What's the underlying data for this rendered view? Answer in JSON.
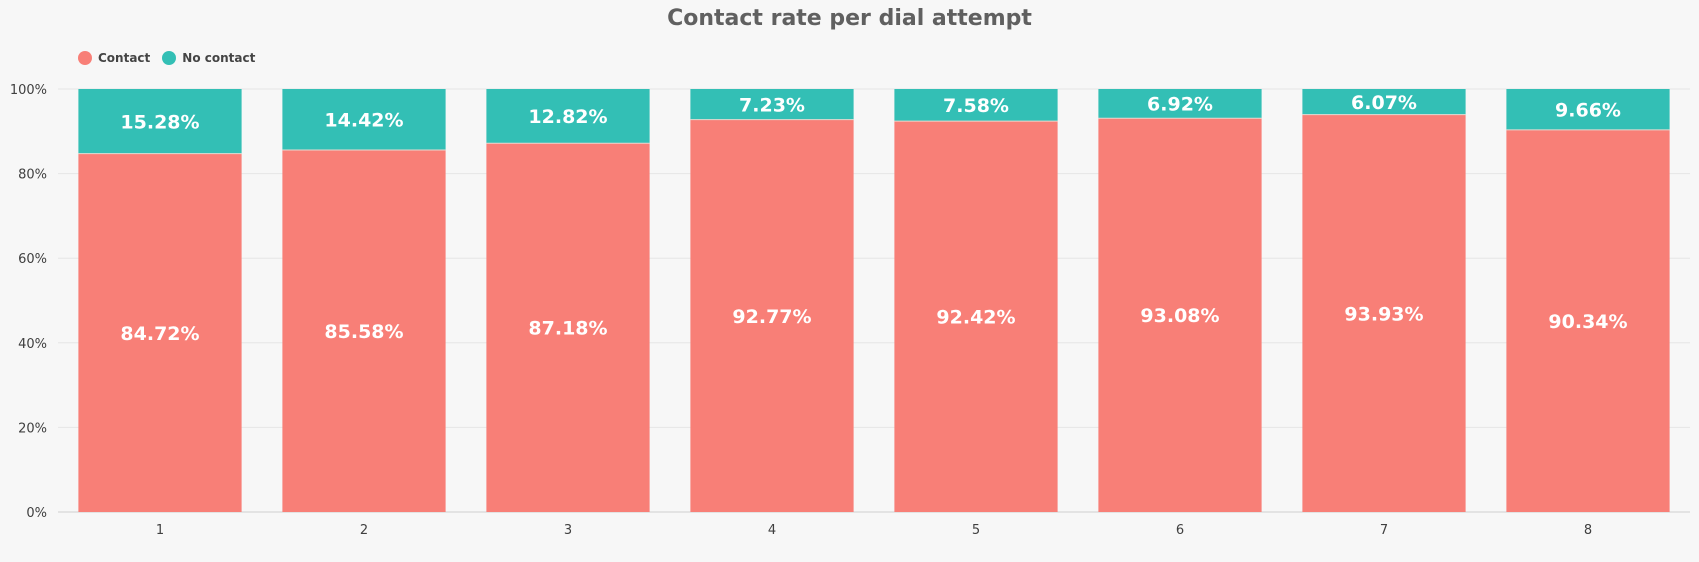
{
  "chart_data": {
    "type": "bar",
    "stacked": true,
    "title": "Contact rate per dial attempt",
    "xlabel": "",
    "ylabel": "",
    "ylim": [
      0,
      100
    ],
    "yticks": [
      "0%",
      "20%",
      "40%",
      "60%",
      "80%",
      "100%"
    ],
    "categories": [
      "1",
      "2",
      "3",
      "4",
      "5",
      "6",
      "7",
      "8"
    ],
    "series": [
      {
        "name": "Contact",
        "color": "#f87f77",
        "values": [
          84.72,
          85.58,
          87.18,
          92.77,
          92.42,
          93.08,
          93.93,
          90.34
        ],
        "labels": [
          "84.72%",
          "85.58%",
          "87.18%",
          "92.77%",
          "92.42%",
          "93.08%",
          "93.93%",
          "90.34%"
        ]
      },
      {
        "name": "No contact",
        "color": "#33bfb5",
        "values": [
          15.28,
          14.42,
          12.82,
          7.23,
          7.58,
          6.92,
          6.07,
          9.66
        ],
        "labels": [
          "15.28%",
          "14.42%",
          "12.82%",
          "7.23%",
          "7.58%",
          "6.92%",
          "6.07%",
          "9.66%"
        ]
      }
    ],
    "legend_position": "top-left",
    "grid": true
  }
}
